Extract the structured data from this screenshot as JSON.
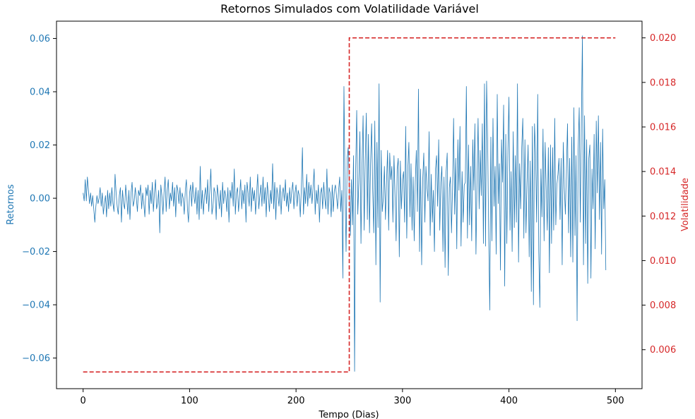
{
  "chart_data": {
    "type": "line",
    "title": "Retornos Simulados com Volatilidade Variável",
    "xlabel": "Tempo (Dias)",
    "ylabel_left": "Retornos",
    "ylabel_right": "Volatilidade",
    "xlim": [
      -25,
      525
    ],
    "ylim_left": [
      -0.0715,
      0.0665
    ],
    "ylim_right": [
      0.00425,
      0.02075
    ],
    "x_ticks": [
      0,
      100,
      200,
      300,
      400,
      500
    ],
    "y_ticks_left": [
      -0.06,
      -0.04,
      -0.02,
      0.0,
      0.02,
      0.04,
      0.06
    ],
    "y_tick_labels_left": [
      "−0.06",
      "−0.04",
      "−0.02",
      "0.00",
      "0.02",
      "0.04",
      "0.06"
    ],
    "y_ticks_right": [
      0.006,
      0.008,
      0.01,
      0.012,
      0.014,
      0.016,
      0.018,
      0.02
    ],
    "y_tick_labels_right": [
      "0.006",
      "0.008",
      "0.010",
      "0.012",
      "0.014",
      "0.016",
      "0.018",
      "0.020"
    ],
    "colors": {
      "returns": "#1f77b4",
      "volatility": "#d62728",
      "axis": "#000000"
    },
    "grid": false,
    "series": [
      {
        "axis": "left",
        "style": "solid",
        "x_start": 0,
        "x_step": 1,
        "values": [
          0.002,
          -0.001,
          0.007,
          -0.001,
          0.008,
          0.003,
          -0.002,
          0.002,
          -0.003,
          0.001,
          -0.004,
          -0.009,
          -0.003,
          0.001,
          -0.002,
          0.0,
          0.004,
          -0.003,
          0.002,
          -0.006,
          -0.002,
          0.001,
          -0.007,
          0.003,
          -0.004,
          0.002,
          -0.003,
          0.004,
          -0.002,
          -0.005,
          0.009,
          0.002,
          -0.003,
          -0.006,
          0.001,
          0.004,
          -0.009,
          0.003,
          -0.002,
          -0.004,
          0.005,
          0.0,
          -0.006,
          0.003,
          -0.008,
          0.002,
          0.006,
          -0.003,
          -0.001,
          0.004,
          0.0,
          -0.005,
          0.003,
          0.001,
          0.005,
          -0.004,
          0.002,
          -0.002,
          -0.007,
          0.004,
          0.001,
          0.005,
          -0.006,
          0.003,
          -0.002,
          0.006,
          -0.005,
          0.002,
          0.007,
          -0.004,
          -0.002,
          0.003,
          -0.013,
          0.005,
          0.001,
          -0.006,
          0.002,
          0.008,
          -0.005,
          0.003,
          0.007,
          -0.004,
          0.002,
          -0.001,
          0.006,
          -0.003,
          0.004,
          -0.007,
          0.005,
          0.003,
          -0.002,
          0.004,
          -0.003,
          0.002,
          0.0,
          -0.006,
          0.003,
          0.007,
          -0.004,
          -0.009,
          0.002,
          0.005,
          -0.003,
          0.006,
          0.001,
          -0.002,
          0.004,
          -0.006,
          0.003,
          -0.008,
          0.012,
          -0.004,
          0.003,
          -0.006,
          0.001,
          0.004,
          -0.002,
          0.007,
          -0.005,
          0.003,
          0.011,
          -0.006,
          -0.003,
          0.004,
          0.002,
          -0.008,
          0.005,
          0.001,
          -0.004,
          0.003,
          -0.007,
          0.006,
          -0.002,
          0.003,
          0.001,
          -0.005,
          0.004,
          -0.009,
          0.003,
          0.0,
          0.006,
          -0.003,
          0.011,
          -0.006,
          0.002,
          0.004,
          -0.005,
          0.001,
          0.007,
          -0.004,
          0.003,
          -0.002,
          0.005,
          -0.009,
          0.006,
          0.002,
          -0.003,
          0.008,
          -0.005,
          0.004,
          -0.001,
          0.003,
          -0.006,
          0.002,
          0.009,
          -0.004,
          0.001,
          0.005,
          -0.003,
          0.008,
          -0.002,
          0.004,
          -0.007,
          0.006,
          0.001,
          -0.005,
          0.003,
          -0.002,
          0.013,
          -0.004,
          0.006,
          -0.008,
          0.004,
          0.001,
          -0.003,
          0.005,
          -0.006,
          0.002,
          0.004,
          -0.001,
          0.007,
          -0.003,
          0.002,
          -0.005,
          0.004,
          -0.002,
          0.003,
          0.006,
          -0.004,
          0.002,
          0.005,
          -0.003,
          0.003,
          0.001,
          -0.007,
          0.004,
          0.019,
          -0.006,
          0.004,
          -0.002,
          0.009,
          -0.003,
          0.006,
          0.0,
          0.005,
          -0.002,
          0.004,
          0.011,
          -0.006,
          0.003,
          -0.002,
          0.005,
          -0.009,
          0.002,
          0.004,
          -0.004,
          0.006,
          0.0,
          -0.004,
          0.011,
          -0.006,
          0.004,
          0.002,
          -0.007,
          0.005,
          -0.005,
          0.003,
          0.005,
          0.001,
          -0.004,
          0.003,
          0.008,
          -0.005,
          0.003,
          -0.03,
          0.042,
          0.005,
          -0.02,
          0.015,
          0.019,
          0.004,
          -0.014,
          0.007,
          -0.01,
          0.016,
          -0.065,
          0.01,
          0.033,
          -0.006,
          0.006,
          0.025,
          -0.017,
          0.013,
          0.031,
          -0.012,
          0.014,
          0.032,
          -0.008,
          0.024,
          -0.013,
          0.013,
          0.028,
          0.003,
          -0.013,
          0.029,
          -0.025,
          0.021,
          -0.011,
          0.043,
          -0.039,
          0.018,
          -0.005,
          0.0,
          0.012,
          -0.008,
          0.006,
          0.018,
          -0.012,
          0.017,
          0.007,
          0.012,
          -0.009,
          0.016,
          0.001,
          -0.016,
          0.011,
          0.015,
          -0.022,
          0.014,
          -0.004,
          0.007,
          0.01,
          -0.009,
          0.027,
          -0.015,
          0.011,
          0.021,
          -0.007,
          0.013,
          -0.012,
          0.008,
          -0.016,
          0.006,
          0.018,
          -0.005,
          0.041,
          -0.02,
          0.011,
          -0.025,
          0.007,
          0.017,
          -0.009,
          0.012,
          0.004,
          -0.001,
          0.025,
          -0.014,
          0.009,
          -0.009,
          0.003,
          -0.02,
          0.011,
          0.016,
          -0.003,
          0.022,
          -0.012,
          0.006,
          0.012,
          -0.02,
          0.008,
          -0.026,
          0.01,
          0.017,
          -0.029,
          0.004,
          0.008,
          -0.013,
          0.003,
          0.03,
          -0.006,
          0.015,
          -0.019,
          0.022,
          0.003,
          0.027,
          -0.018,
          0.01,
          -0.009,
          0.005,
          0.006,
          0.042,
          -0.015,
          0.02,
          -0.01,
          0.012,
          -0.016,
          0.022,
          0.003,
          0.028,
          -0.021,
          0.006,
          0.03,
          -0.004,
          0.018,
          0.001,
          0.028,
          -0.017,
          0.043,
          -0.018,
          0.044,
          0.021,
          -0.015,
          -0.042,
          0.023,
          -0.016,
          0.03,
          -0.003,
          0.012,
          -0.021,
          0.039,
          -0.002,
          0.013,
          -0.027,
          0.022,
          0.006,
          0.035,
          -0.033,
          0.024,
          -0.017,
          0.018,
          0.038,
          -0.012,
          0.01,
          -0.02,
          0.025,
          -0.011,
          0.016,
          -0.009,
          0.043,
          -0.024,
          0.013,
          -0.004,
          0.019,
          0.03,
          -0.015,
          0.022,
          -0.013,
          0.006,
          0.02,
          -0.022,
          0.014,
          -0.035,
          0.027,
          -0.04,
          0.028,
          0.017,
          -0.009,
          0.039,
          -0.02,
          -0.041,
          0.011,
          -0.007,
          0.026,
          -0.016,
          0.021,
          0.003,
          -0.012,
          0.019,
          -0.028,
          0.02,
          -0.017,
          0.019,
          -0.012,
          0.03,
          -0.01,
          0.005,
          0.009,
          0.015,
          -0.008,
          0.015,
          -0.025,
          0.021,
          0.004,
          -0.006,
          0.011,
          0.028,
          -0.013,
          0.015,
          -0.022,
          0.023,
          -0.024,
          0.034,
          -0.014,
          0.016,
          -0.046,
          0.018,
          0.034,
          -0.009,
          0.028,
          0.061,
          -0.025,
          0.031,
          -0.017,
          0.022,
          -0.032,
          0.015,
          0.02,
          -0.03,
          0.011,
          -0.004,
          0.024,
          -0.019,
          0.029,
          0.002,
          0.031,
          -0.008,
          0.021,
          -0.021,
          0.026,
          -0.004,
          0.007,
          -0.027
        ]
      },
      {
        "axis": "right",
        "style": "dashed",
        "x": [
          0,
          250,
          250,
          500
        ],
        "values": [
          0.005,
          0.005,
          0.02,
          0.02
        ]
      }
    ]
  }
}
